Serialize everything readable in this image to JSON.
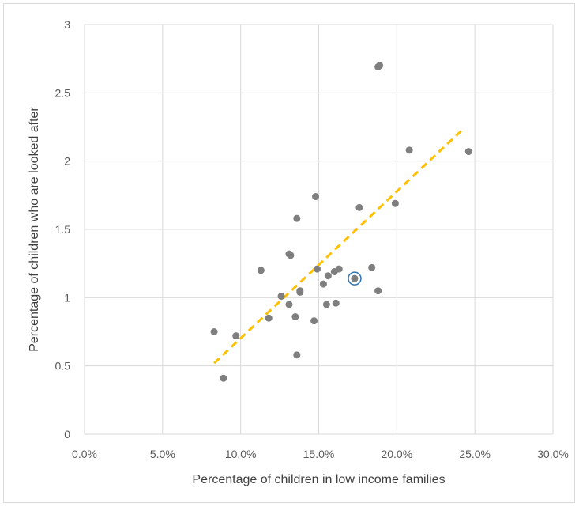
{
  "chart_data": {
    "type": "scatter",
    "title": "",
    "xlabel": "Percentage of children in low income families",
    "ylabel": "Percentage of children who are looked after",
    "xlim": [
      0,
      0.3
    ],
    "ylim": [
      0,
      3
    ],
    "x_tick_labels": [
      "0.0%",
      "5.0%",
      "10.0%",
      "15.0%",
      "20.0%",
      "25.0%",
      "30.0%"
    ],
    "y_tick_labels": [
      "0",
      "0.5",
      "1",
      "1.5",
      "2",
      "2.5",
      "3"
    ],
    "grid": true,
    "legend": "none",
    "points": [
      {
        "x": 0.083,
        "y": 0.75
      },
      {
        "x": 0.089,
        "y": 0.41
      },
      {
        "x": 0.097,
        "y": 0.72
      },
      {
        "x": 0.113,
        "y": 1.2
      },
      {
        "x": 0.118,
        "y": 0.85
      },
      {
        "x": 0.126,
        "y": 1.01
      },
      {
        "x": 0.131,
        "y": 0.95
      },
      {
        "x": 0.131,
        "y": 1.32
      },
      {
        "x": 0.132,
        "y": 1.31
      },
      {
        "x": 0.135,
        "y": 0.86
      },
      {
        "x": 0.136,
        "y": 1.58
      },
      {
        "x": 0.136,
        "y": 0.58
      },
      {
        "x": 0.138,
        "y": 1.04
      },
      {
        "x": 0.138,
        "y": 1.05
      },
      {
        "x": 0.147,
        "y": 0.83
      },
      {
        "x": 0.148,
        "y": 1.74
      },
      {
        "x": 0.149,
        "y": 1.21
      },
      {
        "x": 0.153,
        "y": 1.1
      },
      {
        "x": 0.155,
        "y": 0.95
      },
      {
        "x": 0.156,
        "y": 1.16
      },
      {
        "x": 0.16,
        "y": 1.19
      },
      {
        "x": 0.161,
        "y": 0.96
      },
      {
        "x": 0.163,
        "y": 1.21
      },
      {
        "x": 0.176,
        "y": 1.66
      },
      {
        "x": 0.184,
        "y": 1.22
      },
      {
        "x": 0.188,
        "y": 1.05
      },
      {
        "x": 0.188,
        "y": 2.69
      },
      {
        "x": 0.189,
        "y": 2.7
      },
      {
        "x": 0.199,
        "y": 1.69
      },
      {
        "x": 0.208,
        "y": 2.08
      },
      {
        "x": 0.246,
        "y": 2.07
      }
    ],
    "highlighted_point": {
      "x": 0.173,
      "y": 1.14
    },
    "trendline": {
      "x": [
        0.083,
        0.243
      ],
      "y": [
        0.52,
        2.24
      ],
      "style": "dashed"
    },
    "colors": {
      "point": "#7f7f7f",
      "highlight_ring": "#2e75b6",
      "trendline": "#ffc000",
      "grid": "#d9d9d9"
    }
  }
}
